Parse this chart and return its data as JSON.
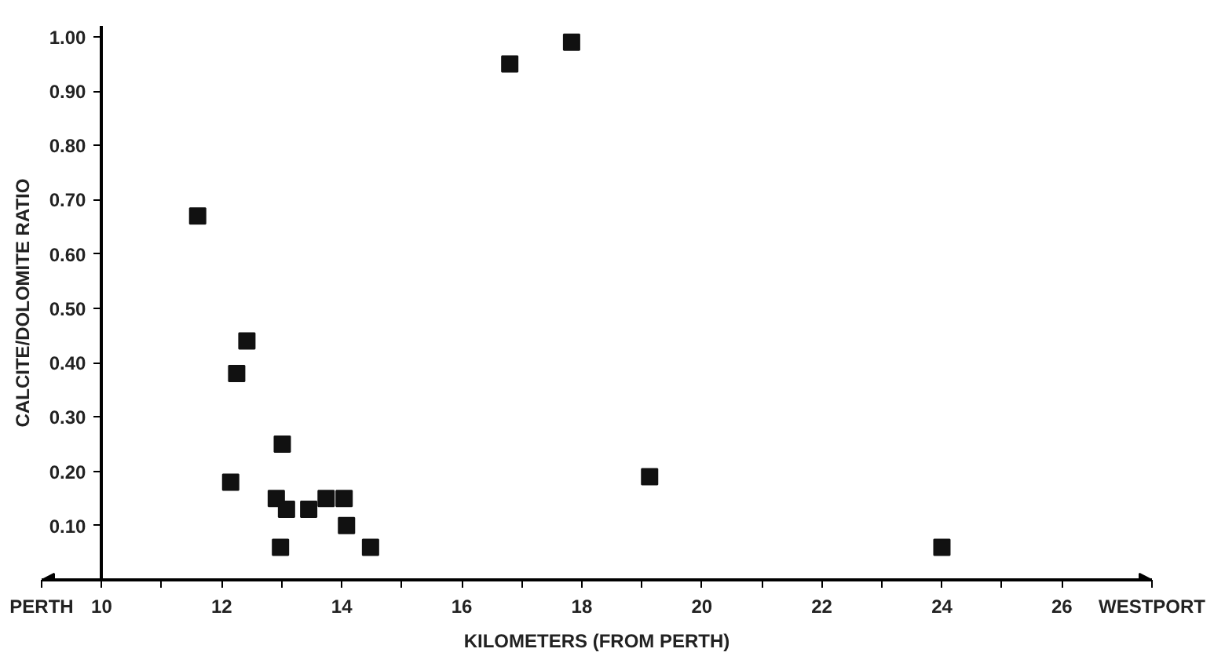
{
  "chart_data": {
    "type": "scatter",
    "xlabel": "KILOMETERS (FROM PERTH)",
    "ylabel": "CALCITE/DOLOMITE RATIO",
    "annotations": [
      "PERTH",
      "WESTPORT"
    ],
    "x": [
      11.6,
      12.42,
      12.25,
      13.01,
      12.15,
      12.91,
      13.08,
      13.45,
      13.74,
      14.04,
      14.08,
      12.98,
      14.48,
      16.8,
      17.83,
      19.13,
      24.0
    ],
    "series": [
      {
        "color": "#111111",
        "values": [
          0.67,
          0.44,
          0.38,
          0.25,
          0.18,
          0.15,
          0.13,
          0.13,
          0.15,
          0.15,
          0.1,
          0.06,
          0.06,
          0.95,
          0.99,
          0.19,
          0.06
        ]
      }
    ],
    "marker": "square",
    "xlim": [
      9,
      27.5
    ],
    "ylim": [
      0,
      1.02
    ],
    "xticks": [
      10,
      {
        "value": 11,
        "label": null
      },
      12,
      {
        "value": 13,
        "label": null
      },
      14,
      {
        "value": 15,
        "label": null
      },
      16,
      {
        "value": 17,
        "label": null
      },
      18,
      {
        "value": 19,
        "label": null
      },
      20,
      {
        "value": 21,
        "label": null
      },
      22,
      {
        "value": 23,
        "label": null
      },
      24,
      {
        "value": 25,
        "label": null
      },
      26
    ],
    "yticks": [
      {
        "value": 0.1,
        "label": "0.10"
      },
      {
        "value": 0.2,
        "label": "0.20"
      },
      {
        "value": 0.3,
        "label": "0.30"
      },
      {
        "value": 0.4,
        "label": "0.40"
      },
      {
        "value": 0.5,
        "label": "0.50"
      },
      {
        "value": 0.6,
        "label": "0.60"
      },
      {
        "value": 0.7,
        "label": "0.70"
      },
      {
        "value": 0.8,
        "label": "0.80"
      },
      {
        "value": 0.9,
        "label": "0.90"
      },
      {
        "value": 1.0,
        "label": "1.00"
      }
    ],
    "grid": false
  }
}
